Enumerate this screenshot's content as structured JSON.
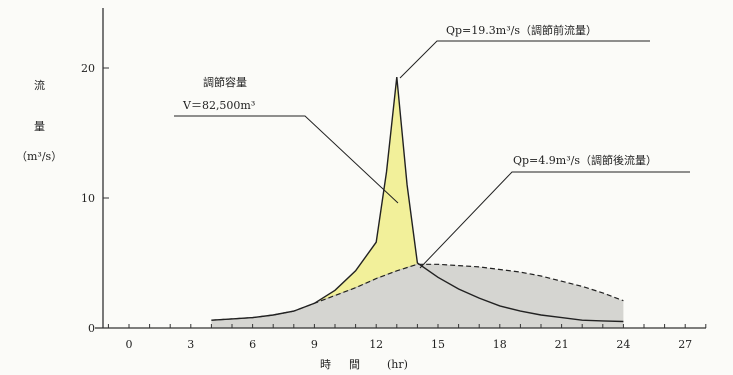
{
  "chart_data": {
    "type": "area",
    "ylabel": [
      "流",
      "量",
      "（m³/s）"
    ],
    "xlabel": [
      "時",
      "間",
      "(hr)"
    ],
    "xlim": [
      -2,
      28
    ],
    "ylim": [
      0,
      25
    ],
    "xticks": [
      0,
      3,
      6,
      9,
      12,
      15,
      18,
      21,
      24,
      27
    ],
    "yticks": [
      0,
      10,
      20
    ],
    "series": [
      {
        "role": "inflow",
        "x": [
          4,
          5,
          6,
          7,
          8,
          9,
          10,
          11,
          12,
          12.5,
          13,
          13.5,
          14,
          15,
          16,
          17,
          18,
          19,
          20,
          21,
          22,
          23,
          24
        ],
        "y": [
          0.6,
          0.7,
          0.8,
          1.0,
          1.3,
          1.9,
          2.9,
          4.4,
          6.6,
          12.0,
          19.3,
          11.0,
          5.0,
          3.9,
          3.0,
          2.3,
          1.7,
          1.3,
          1.0,
          0.8,
          0.6,
          0.55,
          0.5
        ]
      },
      {
        "role": "outflow",
        "x": [
          4,
          5,
          6,
          7,
          8,
          9,
          10,
          11,
          12,
          13,
          14,
          15,
          16,
          17,
          18,
          19,
          20,
          21,
          22,
          23,
          24
        ],
        "y": [
          0.6,
          0.7,
          0.8,
          1.0,
          1.3,
          1.9,
          2.5,
          3.1,
          3.8,
          4.4,
          4.9,
          4.9,
          4.8,
          4.7,
          4.5,
          4.3,
          4.0,
          3.6,
          3.2,
          2.7,
          2.1
        ]
      }
    ],
    "annotations": {
      "storage_title": "調節容量",
      "storage_value": "V＝82,500m³",
      "peak_inflow": "Qp=19.3m³/s（調節前流量）",
      "peak_outflow": "Qp=4.9m³/s（調節後流量）"
    },
    "colors": {
      "storage_fill": "#f2f09a",
      "outflow_fill": "#d5d5d1",
      "line": "#222222"
    }
  }
}
